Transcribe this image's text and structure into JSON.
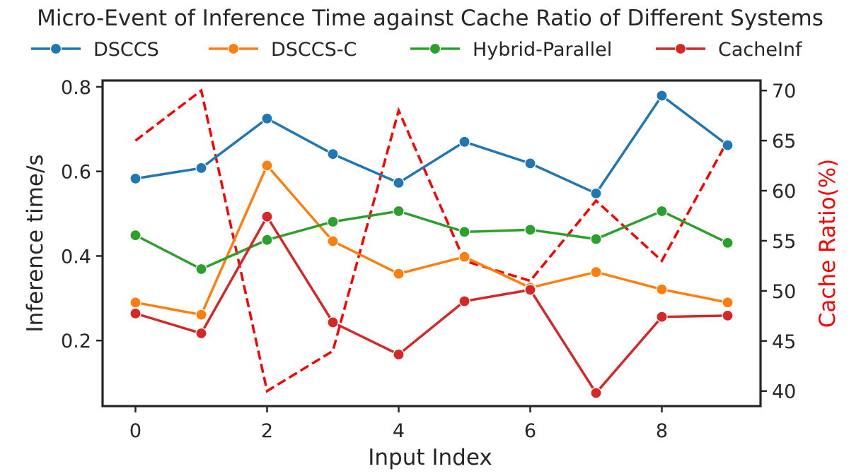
{
  "chart_data": {
    "type": "line",
    "title": "Micro-Event of Inference Time against Cache Ratio of Different Systems",
    "xlabel": "Input Index",
    "ylabel": "Inference time/s",
    "y2label": "Cache Ratio(%)",
    "x": [
      0,
      1,
      2,
      3,
      4,
      5,
      6,
      7,
      8,
      9
    ],
    "xticks": [
      "0",
      "2",
      "4",
      "6",
      "8"
    ],
    "xlim": [
      -0.5,
      9.5
    ],
    "ylim": [
      0.045,
      0.815
    ],
    "yticks": [
      "0.2",
      "0.4",
      "0.6",
      "0.8"
    ],
    "y2lim": [
      38.5,
      71.0
    ],
    "y2ticks": [
      "40",
      "45",
      "50",
      "55",
      "60",
      "65",
      "70"
    ],
    "legend_position": "top-center",
    "grid": false,
    "series": [
      {
        "name": "DSCCS",
        "color": "#1f77b4",
        "values": [
          0.583,
          0.608,
          0.725,
          0.641,
          0.573,
          0.67,
          0.619,
          0.548,
          0.779,
          0.662
        ]
      },
      {
        "name": "DSCCS-C",
        "color": "#ff7f0e",
        "values": [
          0.29,
          0.261,
          0.614,
          0.435,
          0.358,
          0.398,
          0.325,
          0.362,
          0.321,
          0.29
        ]
      },
      {
        "name": "Hybrid-Parallel",
        "color": "#2ca02c",
        "values": [
          0.449,
          0.369,
          0.438,
          0.481,
          0.506,
          0.457,
          0.462,
          0.44,
          0.506,
          0.431
        ]
      },
      {
        "name": "CacheInf",
        "color": "#d62728",
        "values": [
          0.264,
          0.217,
          0.493,
          0.243,
          0.167,
          0.293,
          0.32,
          0.076,
          0.256,
          0.259
        ]
      }
    ],
    "secondary_series": {
      "axis": "right",
      "color": "#ff0000",
      "style": "dashed",
      "values": [
        65,
        70,
        40,
        44,
        68,
        53,
        51,
        59,
        53,
        65
      ]
    }
  }
}
